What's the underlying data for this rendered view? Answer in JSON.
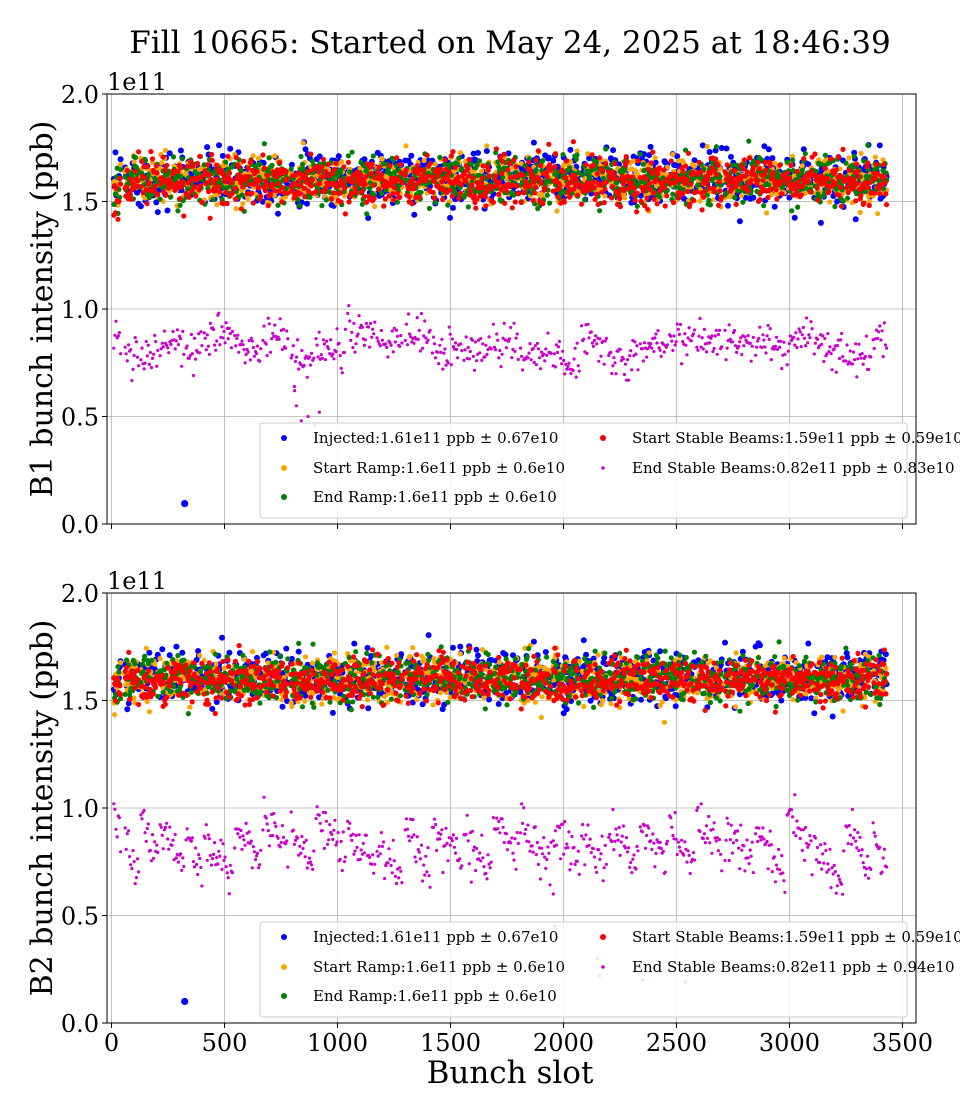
{
  "figure": {
    "title": "Fill 10665: Started on May 24, 2025 at 18:46:39",
    "xlabel": "Bunch slot"
  },
  "chart_data": [
    {
      "type": "scatter",
      "ylabel": "B1 bunch intensity (ppb)",
      "offset_label": "1e11",
      "xlim": [
        -20,
        3560
      ],
      "ylim": [
        0.0,
        2.0
      ],
      "xticks": [
        0,
        500,
        1000,
        1500,
        2000,
        2500,
        3000,
        3500
      ],
      "yticks": [
        0.0,
        0.5,
        1.0,
        1.5,
        2.0
      ],
      "ytick_labels": [
        "0.0",
        "0.5",
        "1.0",
        "1.5",
        "2.0"
      ],
      "grid": true,
      "legend_position": "lower-right",
      "trains": [
        [
          10,
          40
        ],
        [
          60,
          120
        ],
        [
          130,
          205
        ],
        [
          215,
          320
        ],
        [
          330,
          400
        ],
        [
          410,
          535
        ],
        [
          545,
          660
        ],
        [
          670,
          780
        ],
        [
          795,
          895
        ],
        [
          905,
          1035
        ],
        [
          1045,
          1165
        ],
        [
          1175,
          1285
        ],
        [
          1300,
          1410
        ],
        [
          1420,
          1550
        ],
        [
          1560,
          1680
        ],
        [
          1690,
          1800
        ],
        [
          1810,
          1945
        ],
        [
          1955,
          2070
        ],
        [
          2080,
          2190
        ],
        [
          2200,
          2330
        ],
        [
          2340,
          2460
        ],
        [
          2470,
          2580
        ],
        [
          2590,
          2700
        ],
        [
          2715,
          2840
        ],
        [
          2850,
          2980
        ],
        [
          2990,
          3100
        ],
        [
          3110,
          3240
        ],
        [
          3250,
          3360
        ],
        [
          3370,
          3430
        ]
      ],
      "series": [
        {
          "name": "Injected:1.61e11 ppb ± 0.67e10",
          "color": "#0000ff",
          "mean": 1.61,
          "spread": 0.067,
          "outliers": [
            [
              324,
              0.095
            ]
          ]
        },
        {
          "name": "Start Ramp:1.6e11 ppb ± 0.6e10",
          "color": "#ffa500",
          "mean": 1.6,
          "spread": 0.06
        },
        {
          "name": "End Ramp:1.6e11 ppb ± 0.6e10",
          "color": "#008000",
          "mean": 1.6,
          "spread": 0.06
        },
        {
          "name": "Start Stable Beams:1.59e11 ppb ± 0.59e10",
          "color": "#ff0000",
          "mean": 1.59,
          "spread": 0.059
        },
        {
          "name": "End Stable Beams:0.82e11 ppb ± 0.83e10",
          "color": "#cc00cc",
          "mean": 0.82,
          "spread": 0.083,
          "outliers": [
            [
              810,
              0.62
            ],
            [
              818,
              0.55
            ],
            [
              840,
              0.48
            ],
            [
              900,
              0.46
            ],
            [
              920,
              0.52
            ],
            [
              870,
              0.5
            ]
          ]
        }
      ]
    },
    {
      "type": "scatter",
      "ylabel": "B2 bunch intensity (ppb)",
      "offset_label": "1e11",
      "xlim": [
        -20,
        3560
      ],
      "ylim": [
        0.0,
        2.0
      ],
      "xticks": [
        0,
        500,
        1000,
        1500,
        2000,
        2500,
        3000,
        3500
      ],
      "xtick_labels": [
        "0",
        "500",
        "1000",
        "1500",
        "2000",
        "2500",
        "3000",
        "3500"
      ],
      "yticks": [
        0.0,
        0.5,
        1.0,
        1.5,
        2.0
      ],
      "ytick_labels": [
        "0.0",
        "0.5",
        "1.0",
        "1.5",
        "2.0"
      ],
      "grid": true,
      "legend_position": "lower-right",
      "trains": [
        [
          10,
          40
        ],
        [
          60,
          120
        ],
        [
          130,
          205
        ],
        [
          215,
          320
        ],
        [
          330,
          400
        ],
        [
          410,
          535
        ],
        [
          545,
          660
        ],
        [
          670,
          780
        ],
        [
          795,
          895
        ],
        [
          905,
          1035
        ],
        [
          1045,
          1165
        ],
        [
          1175,
          1285
        ],
        [
          1300,
          1410
        ],
        [
          1420,
          1550
        ],
        [
          1560,
          1680
        ],
        [
          1690,
          1800
        ],
        [
          1810,
          1945
        ],
        [
          1955,
          2070
        ],
        [
          2080,
          2190
        ],
        [
          2200,
          2330
        ],
        [
          2340,
          2460
        ],
        [
          2470,
          2580
        ],
        [
          2590,
          2700
        ],
        [
          2715,
          2840
        ],
        [
          2850,
          2980
        ],
        [
          2990,
          3100
        ],
        [
          3110,
          3240
        ],
        [
          3250,
          3360
        ],
        [
          3370,
          3430
        ]
      ],
      "series": [
        {
          "name": "Injected:1.61e11 ppb ± 0.67e10",
          "color": "#0000ff",
          "mean": 1.61,
          "spread": 0.067,
          "outliers": [
            [
              324,
              0.1
            ]
          ]
        },
        {
          "name": "Start Ramp:1.6e11 ppb ± 0.6e10",
          "color": "#ffa500",
          "mean": 1.6,
          "spread": 0.06
        },
        {
          "name": "End Ramp:1.6e11 ppb ± 0.6e10",
          "color": "#008000",
          "mean": 1.6,
          "spread": 0.06
        },
        {
          "name": "Start Stable Beams:1.59e11 ppb ± 0.59e10",
          "color": "#ff0000",
          "mean": 1.59,
          "spread": 0.059
        },
        {
          "name": "End Stable Beams:0.82e11 ppb ± 0.94e10",
          "color": "#cc00cc",
          "mean": 0.82,
          "spread": 0.094,
          "outliers": [
            [
              1955,
              0.6
            ],
            [
              1960,
              0.45
            ],
            [
              2150,
              0.3
            ],
            [
              2160,
              0.22
            ],
            [
              2350,
              0.2
            ],
            [
              2540,
              0.19
            ]
          ]
        }
      ]
    }
  ]
}
